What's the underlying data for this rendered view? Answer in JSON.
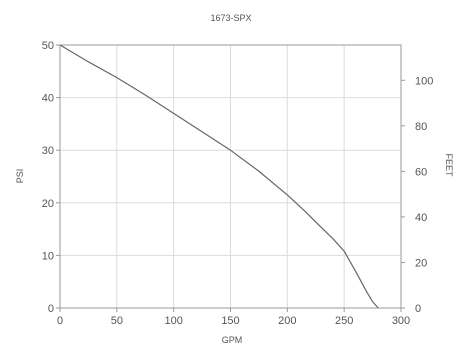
{
  "chart_data": {
    "type": "line",
    "title": "1673-SPX",
    "xlabel": "GPM",
    "ylabel": "PSI",
    "y2label": "FEET",
    "xlim": [
      0,
      300
    ],
    "ylim": [
      0,
      50
    ],
    "y2lim": [
      0,
      115.5
    ],
    "x_ticks": [
      0,
      50,
      100,
      150,
      200,
      250,
      300
    ],
    "y_ticks": [
      0,
      10,
      20,
      30,
      40,
      50
    ],
    "y2_ticks": [
      0,
      20,
      40,
      60,
      80,
      100
    ],
    "grid": true,
    "legend": "none",
    "series": [
      {
        "x": [
          0,
          25,
          50,
          75,
          100,
          125,
          150,
          175,
          200,
          215,
          230,
          240,
          250,
          260,
          270,
          275,
          280
        ],
        "y": [
          50,
          46.8,
          43.8,
          40.5,
          37,
          33.5,
          30,
          26,
          21.5,
          18.5,
          15.3,
          13.2,
          10.8,
          7,
          3,
          1.2,
          0
        ]
      }
    ]
  }
}
